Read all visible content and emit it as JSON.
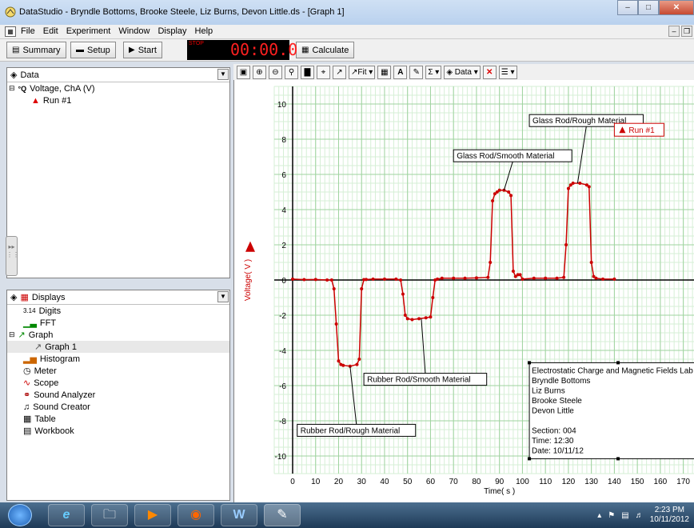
{
  "window": {
    "title": "DataStudio - Bryndle Bottoms, Brooke Steele, Liz Burns, Devon Little.ds - [Graph 1]"
  },
  "menu": [
    "File",
    "Edit",
    "Experiment",
    "Window",
    "Display",
    "Help"
  ],
  "toolbar": {
    "summary_label": "Summary",
    "setup_label": "Setup",
    "start_label": "Start",
    "stop_label": "STOP",
    "timer": "00:00.0",
    "calculate_label": "Calculate"
  },
  "data_panel": {
    "header": "Data",
    "items": [
      {
        "label": "Voltage, ChA (V)"
      },
      {
        "label": "Run #1"
      }
    ]
  },
  "displays_panel": {
    "header": "Displays",
    "items": [
      {
        "label": "Digits",
        "icon": "digits-icon"
      },
      {
        "label": "FFT",
        "icon": "fft-icon"
      },
      {
        "label": "Graph",
        "icon": "graph-icon"
      },
      {
        "label": "Graph 1",
        "icon": "graph-icon"
      },
      {
        "label": "Histogram",
        "icon": "histogram-icon"
      },
      {
        "label": "Meter",
        "icon": "meter-icon"
      },
      {
        "label": "Scope",
        "icon": "scope-icon"
      },
      {
        "label": "Sound Analyzer",
        "icon": "sound-analyzer-icon"
      },
      {
        "label": "Sound Creator",
        "icon": "sound-creator-icon"
      },
      {
        "label": "Table",
        "icon": "table-icon"
      },
      {
        "label": "Workbook",
        "icon": "workbook-icon"
      }
    ]
  },
  "graph_toolbar": {
    "fit_label": "Fit",
    "data_label": "Data"
  },
  "chart_data": {
    "type": "line",
    "xlabel": "Time( s )",
    "ylabel": "Voltage( V )",
    "xlim": [
      -8,
      175
    ],
    "ylim": [
      -11,
      11
    ],
    "x_ticks": [
      0,
      10,
      20,
      30,
      40,
      50,
      60,
      70,
      80,
      90,
      100,
      110,
      120,
      130,
      140,
      150,
      160,
      170
    ],
    "y_ticks": [
      -10,
      -8,
      -6,
      -4,
      -2,
      0,
      2,
      4,
      6,
      8,
      10
    ],
    "grid": true,
    "series": [
      {
        "name": "Run #1",
        "color": "#cc0000",
        "x": [
          0,
          5,
          10,
          15,
          17,
          18,
          19,
          20,
          21,
          22,
          25,
          28,
          29,
          30,
          31,
          32,
          35,
          40,
          45,
          47,
          48,
          49,
          50,
          52,
          55,
          58,
          60,
          61,
          62,
          63,
          65,
          70,
          75,
          80,
          85,
          86,
          87,
          88,
          89,
          90,
          92,
          94,
          95,
          96,
          97,
          98,
          99,
          100,
          105,
          110,
          115,
          118,
          119,
          120,
          121,
          122,
          125,
          128,
          129,
          130,
          131,
          132,
          135,
          140
        ],
        "y": [
          0.05,
          0.02,
          0.03,
          0.0,
          0.0,
          -0.5,
          -2.5,
          -4.6,
          -4.8,
          -4.85,
          -4.9,
          -4.8,
          -4.5,
          -0.5,
          0.02,
          0.03,
          0.05,
          0.05,
          0.05,
          0.0,
          -0.8,
          -2.0,
          -2.2,
          -2.25,
          -2.2,
          -2.15,
          -2.1,
          -1.0,
          0.0,
          0.05,
          0.1,
          0.1,
          0.1,
          0.12,
          0.15,
          1.0,
          4.5,
          4.9,
          5.0,
          5.1,
          5.1,
          5.0,
          4.8,
          0.5,
          0.2,
          0.3,
          0.3,
          0.05,
          0.1,
          0.1,
          0.1,
          0.15,
          2.0,
          5.2,
          5.4,
          5.5,
          5.5,
          5.4,
          5.3,
          1.0,
          0.2,
          0.1,
          0.05,
          0.05
        ]
      }
    ],
    "legend": {
      "label": "Run #1",
      "position": "top-right"
    },
    "annotations": [
      "Rubber Rod/Rough Material",
      "Rubber Rod/Smooth Material",
      "Glass Rod/Smooth Material",
      "Glass Rod/Rough Material"
    ],
    "note_lines": [
      "Electrostatic Charge and Magnetic Fields Lab",
      "Bryndle Bottoms",
      "Liz Burns",
      "Brooke Steele",
      "Devon Little",
      "",
      "Section: 004",
      "Time: 12:30",
      "Date: 10/11/12"
    ]
  },
  "taskbar": {
    "time": "2:23 PM",
    "date": "10/11/2012"
  }
}
